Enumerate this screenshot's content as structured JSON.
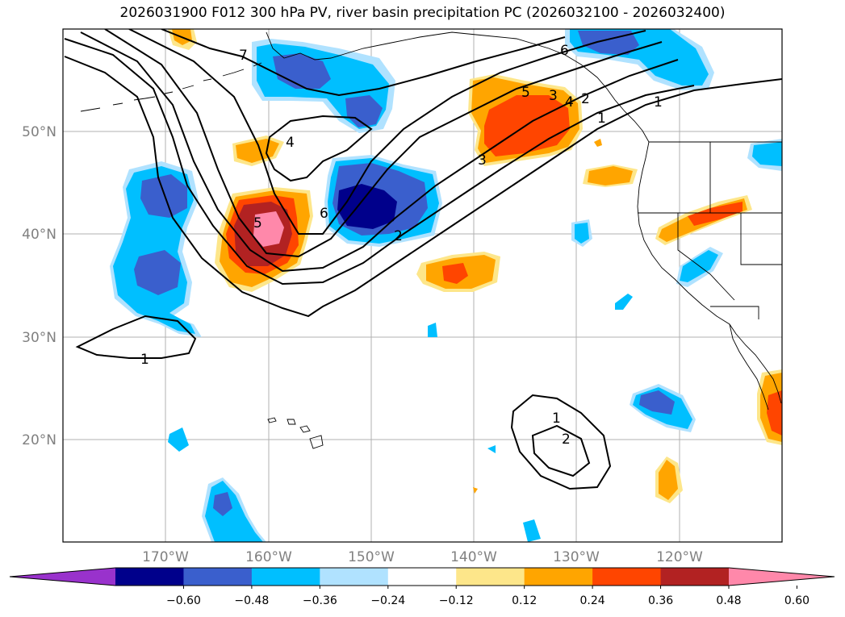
{
  "title": "2026031900 F012 300 hPa PV, river basin precipitation PC (2026032100 - 2026032400)",
  "lat_labels": [
    "50°N",
    "40°N",
    "30°N",
    "20°N"
  ],
  "lon_labels": [
    "170°W",
    "160°W",
    "150°W",
    "140°W",
    "130°W",
    "120°W"
  ],
  "colorbar": {
    "tick_labels": [
      "−0.60",
      "−0.48",
      "−0.36",
      "−0.24",
      "−0.12",
      "0.12",
      "0.24",
      "0.36",
      "0.48",
      "0.60"
    ],
    "colors": [
      "#9932cc",
      "#00008b",
      "#3a5fcd",
      "#00bfff",
      "#b0e2ff",
      "#ffffff",
      "#fde68a",
      "#ffa500",
      "#ff4500",
      "#b22222",
      "#ff88aa"
    ]
  },
  "contour_labels": [
    "7",
    "6",
    "5",
    "4",
    "3",
    "2",
    "1",
    "6",
    "5",
    "3",
    "4",
    "2",
    "1",
    "1",
    "1",
    "2"
  ],
  "colors": {
    "coast": "#000000",
    "grid": "#b0b0b0",
    "contour": "#000000"
  }
}
